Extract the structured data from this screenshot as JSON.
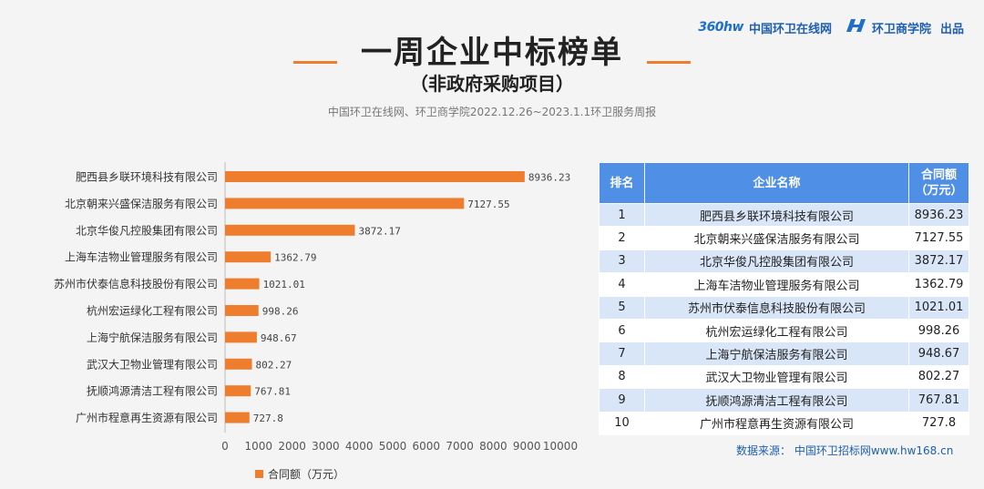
{
  "header": {
    "brand_logo_text": "360hw",
    "brand_site": "中国环卫在线网",
    "brand_school": "环卫商学院",
    "brand_suffix": "出品",
    "title": "一周企业中标榜单",
    "subtitle": "（非政府采购项目）",
    "source_line": "中国环卫在线网、环卫商学院2022.12.26~2023.1.1环卫服务周报"
  },
  "colors": {
    "bar": "#ee7d2e",
    "table_header": "#4f8fe6",
    "row_alt": "#d9e6f7",
    "footnote": "#1f5fb0"
  },
  "chart_data": {
    "type": "bar",
    "orientation": "horizontal",
    "categories": [
      "肥西县乡联环境科技有限公司",
      "北京朝来兴盛保洁服务有限公司",
      "北京华俊凡控股集团有限公司",
      "上海车洁物业管理服务有限公司",
      "苏州市伏泰信息科技股份有限公司",
      "杭州宏运绿化工程有限公司",
      "上海宁航保洁服务有限公司",
      "武汉大卫物业管理有限公司",
      "抚顺鸿源清洁工程有限公司",
      "广州市程意再生资源有限公司"
    ],
    "value_labels": [
      "8936.23",
      "7127.55",
      "3872.17",
      "1362.79",
      "1021.01",
      "998.26",
      "948.67",
      "802.27",
      "767.81",
      "727.8"
    ],
    "series": [
      {
        "name": "合同额（万元）",
        "values": [
          8936.23,
          7127.55,
          3872.17,
          1362.79,
          1021.01,
          998.26,
          948.67,
          802.27,
          767.81,
          727.8
        ]
      }
    ],
    "xlim": [
      0,
      10000
    ],
    "xticks": [
      "0",
      "1000",
      "2000",
      "3000",
      "4000",
      "5000",
      "6000",
      "7000",
      "8000",
      "9000",
      "10000"
    ],
    "xticks_values": [
      0,
      1000,
      2000,
      3000,
      4000,
      5000,
      6000,
      7000,
      8000,
      9000,
      10000
    ],
    "legend": "bottom"
  },
  "table": {
    "headers": {
      "rank": "排名",
      "name": "企业名称",
      "amount_line1": "合同额",
      "amount_line2": "（万元）"
    },
    "rows": [
      {
        "rank": "1",
        "name": "肥西县乡联环境科技有限公司",
        "amount": "8936.23"
      },
      {
        "rank": "2",
        "name": "北京朝来兴盛保洁服务有限公司",
        "amount": "7127.55"
      },
      {
        "rank": "3",
        "name": "北京华俊凡控股集团有限公司",
        "amount": "3872.17"
      },
      {
        "rank": "4",
        "name": "上海车洁物业管理服务有限公司",
        "amount": "1362.79"
      },
      {
        "rank": "5",
        "name": "苏州市伏泰信息科技股份有限公司",
        "amount": "1021.01"
      },
      {
        "rank": "6",
        "name": "杭州宏运绿化工程有限公司",
        "amount": "998.26"
      },
      {
        "rank": "7",
        "name": "上海宁航保洁服务有限公司",
        "amount": "948.67"
      },
      {
        "rank": "8",
        "name": "武汉大卫物业管理有限公司",
        "amount": "802.27"
      },
      {
        "rank": "9",
        "name": "抚顺鸿源清洁工程有限公司",
        "amount": "767.81"
      },
      {
        "rank": "10",
        "name": "广州市程意再生资源有限公司",
        "amount": "727.8"
      }
    ]
  },
  "footnote": "数据来源： 中国环卫招标网www.hw168.cn"
}
